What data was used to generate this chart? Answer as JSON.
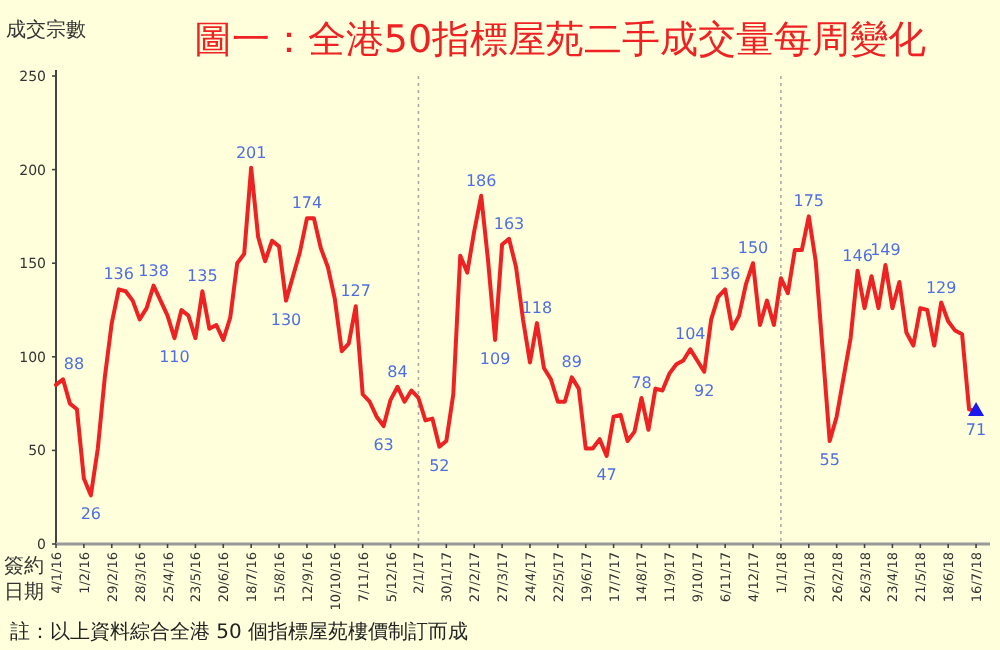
{
  "chart_data": {
    "type": "line",
    "title": "圖一：全港50指標屋苑二手成交量每周變化",
    "ylabel": "成交宗數",
    "xlabel": "簽約日期",
    "annotations": [
      "註：以上資料綜合全港 50 個指標屋苑樓價制訂而成"
    ],
    "x": [
      "2016-01-04",
      "2016-01-11",
      "2016-01-18",
      "2016-01-25",
      "2016-02-01",
      "2016-02-08",
      "2016-02-15",
      "2016-02-22",
      "2016-02-29",
      "2016-03-07",
      "2016-03-14",
      "2016-03-21",
      "2016-03-28",
      "2016-04-04",
      "2016-04-11",
      "2016-04-18",
      "2016-04-25",
      "2016-05-02",
      "2016-05-09",
      "2016-05-16",
      "2016-05-23",
      "2016-05-30",
      "2016-06-06",
      "2016-06-13",
      "2016-06-20",
      "2016-06-27",
      "2016-07-04",
      "2016-07-11",
      "2016-07-18",
      "2016-07-25",
      "2016-08-01",
      "2016-08-08",
      "2016-08-15",
      "2016-08-22",
      "2016-08-29",
      "2016-09-05",
      "2016-09-12",
      "2016-09-19",
      "2016-09-26",
      "2016-10-03",
      "2016-10-10",
      "2016-10-17",
      "2016-10-24",
      "2016-10-31",
      "2016-11-07",
      "2016-11-14",
      "2016-11-21",
      "2016-11-28",
      "2016-12-05",
      "2016-12-12",
      "2016-12-19",
      "2016-12-26",
      "2017-01-02",
      "2017-01-09",
      "2017-01-16",
      "2017-01-23",
      "2017-01-30",
      "2017-02-06",
      "2017-02-13",
      "2017-02-20",
      "2017-02-27",
      "2017-03-06",
      "2017-03-13",
      "2017-03-20",
      "2017-03-27",
      "2017-04-03",
      "2017-04-10",
      "2017-04-17",
      "2017-04-24",
      "2017-05-01",
      "2017-05-08",
      "2017-05-15",
      "2017-05-22",
      "2017-05-29",
      "2017-06-05",
      "2017-06-12",
      "2017-06-19",
      "2017-06-26",
      "2017-07-03",
      "2017-07-10",
      "2017-07-17",
      "2017-07-24",
      "2017-07-31",
      "2017-08-07",
      "2017-08-14",
      "2017-08-21",
      "2017-08-28",
      "2017-09-04",
      "2017-09-11",
      "2017-09-18",
      "2017-09-25",
      "2017-10-02",
      "2017-10-09",
      "2017-10-16",
      "2017-10-23",
      "2017-10-30",
      "2017-11-06",
      "2017-11-13",
      "2017-11-20",
      "2017-11-27",
      "2017-12-04",
      "2017-12-11",
      "2017-12-18",
      "2017-12-25",
      "2018-01-01",
      "2018-01-08",
      "2018-01-15",
      "2018-01-22",
      "2018-01-29",
      "2018-02-05",
      "2018-02-12",
      "2018-02-19",
      "2018-02-26",
      "2018-03-05",
      "2018-03-12",
      "2018-03-19",
      "2018-03-26",
      "2018-04-02",
      "2018-04-09",
      "2018-04-16",
      "2018-04-23",
      "2018-04-30",
      "2018-05-07",
      "2018-05-14",
      "2018-05-21",
      "2018-05-28",
      "2018-06-04",
      "2018-06-11",
      "2018-06-18",
      "2018-06-25",
      "2018-07-02",
      "2018-07-09",
      "2018-07-16"
    ],
    "series": [
      {
        "color": "#ee2222",
        "values": [
          85,
          88,
          75,
          72,
          35,
          26,
          51,
          89,
          118,
          136,
          135,
          130,
          120,
          126,
          138,
          130,
          122,
          110,
          125,
          122,
          110,
          135,
          115,
          117,
          109,
          121,
          150,
          155,
          201,
          164,
          151,
          162,
          159,
          130,
          143,
          156,
          174,
          174,
          158,
          148,
          131,
          103,
          107,
          127,
          80,
          76,
          68,
          63,
          77,
          84,
          76,
          82,
          78,
          66,
          67,
          52,
          55,
          80,
          154,
          145,
          167,
          186,
          151,
          109,
          160,
          163,
          148,
          120,
          97,
          118,
          94,
          88,
          76,
          76,
          89,
          83,
          51,
          51,
          56,
          47,
          68,
          69,
          55,
          60,
          78,
          61,
          83,
          82,
          91,
          96,
          98,
          104,
          98,
          92,
          120,
          132,
          136,
          115,
          122,
          139,
          150,
          117,
          130,
          117,
          142,
          134,
          157,
          157,
          175,
          151,
          103,
          55,
          68,
          89,
          110,
          146,
          126,
          143,
          126,
          149,
          126,
          140,
          113,
          106,
          126,
          125,
          106,
          129,
          119,
          114,
          112,
          72,
          71
        ],
        "value_labels": [
          null,
          "88",
          null,
          null,
          null,
          "26",
          null,
          null,
          null,
          "136",
          null,
          null,
          null,
          null,
          "138",
          null,
          null,
          "110",
          null,
          null,
          null,
          "135",
          null,
          null,
          null,
          null,
          null,
          null,
          "201",
          null,
          null,
          null,
          null,
          "130",
          null,
          null,
          "174",
          null,
          null,
          null,
          null,
          null,
          null,
          "127",
          null,
          null,
          null,
          "63",
          null,
          "84",
          null,
          null,
          null,
          null,
          null,
          "52",
          null,
          null,
          null,
          null,
          null,
          "186",
          null,
          "109",
          null,
          "163",
          null,
          null,
          null,
          "118",
          null,
          null,
          null,
          null,
          "89",
          null,
          null,
          null,
          null,
          "47",
          null,
          null,
          null,
          null,
          "78",
          null,
          null,
          null,
          null,
          null,
          null,
          "104",
          null,
          "92",
          null,
          null,
          "136",
          null,
          null,
          null,
          "150",
          null,
          null,
          null,
          null,
          null,
          null,
          null,
          "175",
          null,
          null,
          "55",
          null,
          null,
          null,
          "146",
          null,
          null,
          null,
          "149",
          null,
          null,
          null,
          null,
          null,
          null,
          null,
          "129",
          null,
          null,
          null,
          null,
          "71"
        ]
      },
      {
        "type": "scatter",
        "marker": "triangle",
        "color": "#1a1aee",
        "x": [
          "2018-07-16"
        ],
        "values": [
          71
        ]
      }
    ],
    "ylim": [
      0,
      250
    ],
    "yticks": [
      0,
      50,
      100,
      150,
      200,
      250
    ],
    "xlim": [
      "2016-01-04",
      "2018-07-30"
    ],
    "xticks": [
      {
        "value": "2016-01-04",
        "label": "4/1/16"
      },
      {
        "value": "2016-02-01",
        "label": "1/2/16"
      },
      {
        "value": "2016-02-29",
        "label": "29/2/16"
      },
      {
        "value": "2016-03-28",
        "label": "28/3/16"
      },
      {
        "value": "2016-04-25",
        "label": "25/4/16"
      },
      {
        "value": "2016-05-23",
        "label": "23/5/16"
      },
      {
        "value": "2016-06-20",
        "label": "20/6/16"
      },
      {
        "value": "2016-07-18",
        "label": "18/7/16"
      },
      {
        "value": "2016-08-15",
        "label": "15/8/16"
      },
      {
        "value": "2016-09-12",
        "label": "12/9/16"
      },
      {
        "value": "2016-10-10",
        "label": "10/10/16"
      },
      {
        "value": "2016-11-07",
        "label": "7/11/16"
      },
      {
        "value": "2016-12-05",
        "label": "5/12/16"
      },
      {
        "value": "2017-01-02",
        "label": "2/1/17"
      },
      {
        "value": "2017-01-30",
        "label": "30/1/17"
      },
      {
        "value": "2017-02-27",
        "label": "27/2/17"
      },
      {
        "value": "2017-03-27",
        "label": "27/3/17"
      },
      {
        "value": "2017-04-24",
        "label": "24/4/17"
      },
      {
        "value": "2017-05-22",
        "label": "22/5/17"
      },
      {
        "value": "2017-06-19",
        "label": "19/6/17"
      },
      {
        "value": "2017-07-17",
        "label": "17/7/17"
      },
      {
        "value": "2017-08-14",
        "label": "14/8/17"
      },
      {
        "value": "2017-09-11",
        "label": "11/9/17"
      },
      {
        "value": "2017-10-09",
        "label": "9/10/17"
      },
      {
        "value": "2017-11-06",
        "label": "6/11/17"
      },
      {
        "value": "2017-12-04",
        "label": "4/12/17"
      },
      {
        "value": "2018-01-01",
        "label": "1/1/18"
      },
      {
        "value": "2018-01-29",
        "label": "29/1/18"
      },
      {
        "value": "2018-02-26",
        "label": "26/2/18"
      },
      {
        "value": "2018-03-26",
        "label": "26/3/18"
      },
      {
        "value": "2018-04-23",
        "label": "23/4/18"
      },
      {
        "value": "2018-05-21",
        "label": "21/5/18"
      },
      {
        "value": "2018-06-18",
        "label": "18/6/18"
      },
      {
        "value": "2018-07-16",
        "label": "16/7/18"
      }
    ],
    "ref_lines": [
      {
        "axis": "x",
        "value": "2017-01-02",
        "color": "#aaaaaa",
        "line_style": "dotted"
      },
      {
        "axis": "x",
        "value": "2018-01-01",
        "color": "#aaaaaa",
        "line_style": "dotted"
      }
    ],
    "grid": false,
    "marker": "none",
    "line_style": "solid"
  }
}
